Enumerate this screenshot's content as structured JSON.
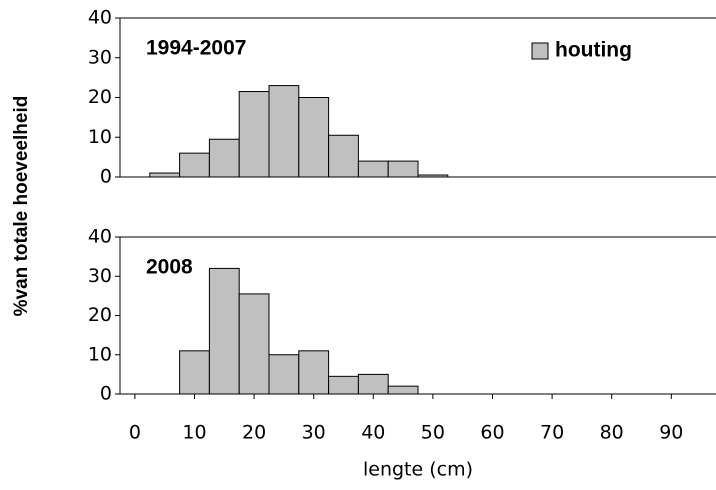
{
  "chart_data": [
    {
      "type": "histogram",
      "title": "1994-2007",
      "ylabel": "%van totale hoeveelheid",
      "bins": [
        2.5,
        7.5,
        12.5,
        17.5,
        22.5,
        27.5,
        32.5,
        37.5,
        42.5,
        47.5,
        52.5
      ],
      "series": [
        {
          "name": "houting",
          "color": "#c0c0c0",
          "values": [
            1,
            6,
            9.5,
            21.5,
            23,
            20,
            10.5,
            4,
            4,
            0.5
          ]
        }
      ],
      "xlim": [
        -2.5,
        97.5
      ],
      "ylim": [
        0,
        40
      ],
      "yticks": [
        0,
        10,
        20,
        30,
        40
      ],
      "legend": "upper right"
    },
    {
      "type": "histogram",
      "title": "2008",
      "xlabel": "lengte (cm)",
      "bins": [
        7.5,
        12.5,
        17.5,
        22.5,
        27.5,
        32.5,
        37.5,
        42.5,
        47.5
      ],
      "values": [
        11,
        32,
        25.5,
        10,
        11,
        4.5,
        5,
        2
      ],
      "color": "#c0c0c0",
      "xlim": [
        -2.5,
        97.5
      ],
      "xticks": [
        0,
        10,
        20,
        30,
        40,
        50,
        60,
        70,
        80,
        90
      ],
      "ylim": [
        0,
        40
      ],
      "yticks": [
        0,
        10,
        20,
        30,
        40
      ]
    }
  ]
}
